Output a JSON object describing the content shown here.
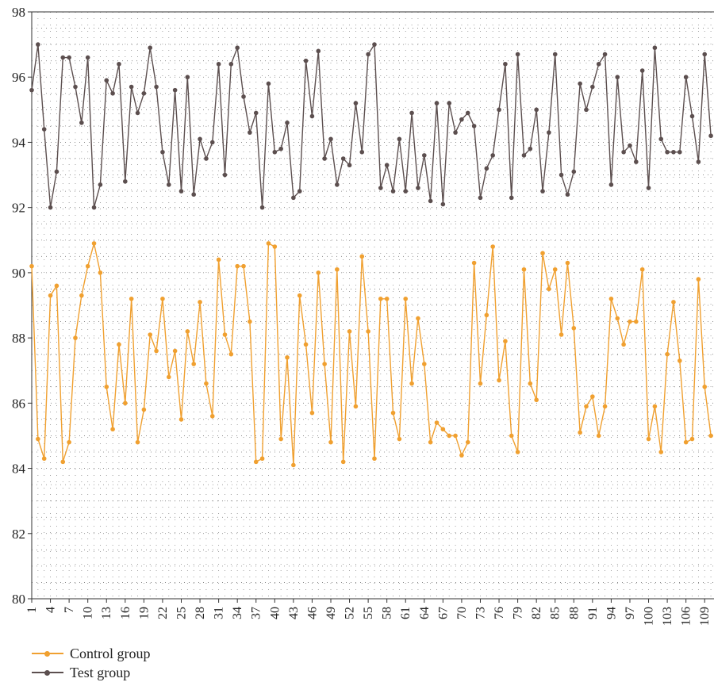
{
  "chart_data": {
    "type": "line",
    "xlabel": "",
    "ylabel": "",
    "ylim": [
      80,
      98
    ],
    "xlim": [
      1,
      110
    ],
    "yticks": [
      80,
      82,
      84,
      86,
      88,
      90,
      92,
      94,
      96,
      98
    ],
    "xticks": [
      1,
      4,
      7,
      10,
      13,
      16,
      19,
      22,
      25,
      28,
      31,
      34,
      37,
      40,
      43,
      46,
      49,
      52,
      55,
      58,
      61,
      64,
      67,
      70,
      73,
      76,
      79,
      82,
      85,
      88,
      91,
      94,
      97,
      100,
      103,
      106,
      109
    ],
    "grid": true,
    "legend_position": "bottom-left",
    "x": [
      1,
      2,
      3,
      4,
      5,
      6,
      7,
      8,
      9,
      10,
      11,
      12,
      13,
      14,
      15,
      16,
      17,
      18,
      19,
      20,
      21,
      22,
      23,
      24,
      25,
      26,
      27,
      28,
      29,
      30,
      31,
      32,
      33,
      34,
      35,
      36,
      37,
      38,
      39,
      40,
      41,
      42,
      43,
      44,
      45,
      46,
      47,
      48,
      49,
      50,
      51,
      52,
      53,
      54,
      55,
      56,
      57,
      58,
      59,
      60,
      61,
      62,
      63,
      64,
      65,
      66,
      67,
      68,
      69,
      70,
      71,
      72,
      73,
      74,
      75,
      76,
      77,
      78,
      79,
      80,
      81,
      82,
      83,
      84,
      85,
      86,
      87,
      88,
      89,
      90,
      91,
      92,
      93,
      94,
      95,
      96,
      97,
      98,
      99,
      100,
      101,
      102,
      103,
      104,
      105,
      106,
      107,
      108,
      109,
      110
    ],
    "series": [
      {
        "name": "Control group",
        "color": "#f0a030",
        "values": [
          90.2,
          84.9,
          84.3,
          89.3,
          89.6,
          84.2,
          84.8,
          88.0,
          89.3,
          90.2,
          90.9,
          90.0,
          86.5,
          85.2,
          87.8,
          86.0,
          89.2,
          84.8,
          85.8,
          88.1,
          87.6,
          89.2,
          86.8,
          87.6,
          85.5,
          88.2,
          87.2,
          89.1,
          86.6,
          85.6,
          90.4,
          88.1,
          87.5,
          90.2,
          90.2,
          88.5,
          84.2,
          84.3,
          90.9,
          90.8,
          84.9,
          87.4,
          84.1,
          89.3,
          87.8,
          85.7,
          90.0,
          87.2,
          84.8,
          90.1,
          84.2,
          88.2,
          85.9,
          90.5,
          88.2,
          84.3,
          89.2,
          89.2,
          85.7,
          84.9,
          89.2,
          86.6,
          88.6,
          87.2,
          84.8,
          85.4,
          85.2,
          85.0,
          85.0,
          84.4,
          84.8,
          90.3,
          86.6,
          88.7,
          90.8,
          86.7,
          87.9,
          85.0,
          84.5,
          90.1,
          86.6,
          86.1,
          90.6,
          89.5,
          90.1,
          88.1,
          90.3,
          88.3,
          85.1,
          85.9,
          86.2,
          85.0,
          85.9,
          89.2,
          88.6,
          87.8,
          88.5,
          88.5,
          90.1,
          84.9,
          85.9,
          84.5,
          87.5,
          89.1,
          87.3,
          84.8,
          84.9,
          89.8,
          86.5,
          85.0
        ]
      },
      {
        "name": "Test group",
        "color": "#5c4f4f",
        "values": [
          95.6,
          97.0,
          94.4,
          92.0,
          93.1,
          96.6,
          96.6,
          95.7,
          94.6,
          96.6,
          92.0,
          92.7,
          95.9,
          95.5,
          96.4,
          92.8,
          95.7,
          94.9,
          95.5,
          96.9,
          95.7,
          93.7,
          92.7,
          95.6,
          92.5,
          96.0,
          92.4,
          94.1,
          93.5,
          94.0,
          96.4,
          93.0,
          96.4,
          96.9,
          95.4,
          94.3,
          94.9,
          92.0,
          95.8,
          93.7,
          93.8,
          94.6,
          92.3,
          92.5,
          96.5,
          94.8,
          96.8,
          93.5,
          94.1,
          92.7,
          93.5,
          93.3,
          95.2,
          93.7,
          96.7,
          97.0,
          92.6,
          93.3,
          92.5,
          94.1,
          92.5,
          94.9,
          92.6,
          93.6,
          92.2,
          95.2,
          92.1,
          95.2,
          94.3,
          94.7,
          94.9,
          94.5,
          92.3,
          93.2,
          93.6,
          95.0,
          96.4,
          92.3,
          96.7,
          93.6,
          93.8,
          95.0,
          92.5,
          94.3,
          96.7,
          93.0,
          92.4,
          93.1,
          95.8,
          95.0,
          95.7,
          96.4,
          96.7,
          92.7,
          96.0,
          93.7,
          93.9,
          93.4,
          96.2,
          92.6,
          96.9,
          94.1,
          93.7,
          93.7,
          93.7,
          96.0,
          94.8,
          93.4,
          96.7,
          94.2
        ]
      }
    ]
  },
  "legend": {
    "items": [
      {
        "label": "Control group"
      },
      {
        "label": "Test group"
      }
    ]
  }
}
